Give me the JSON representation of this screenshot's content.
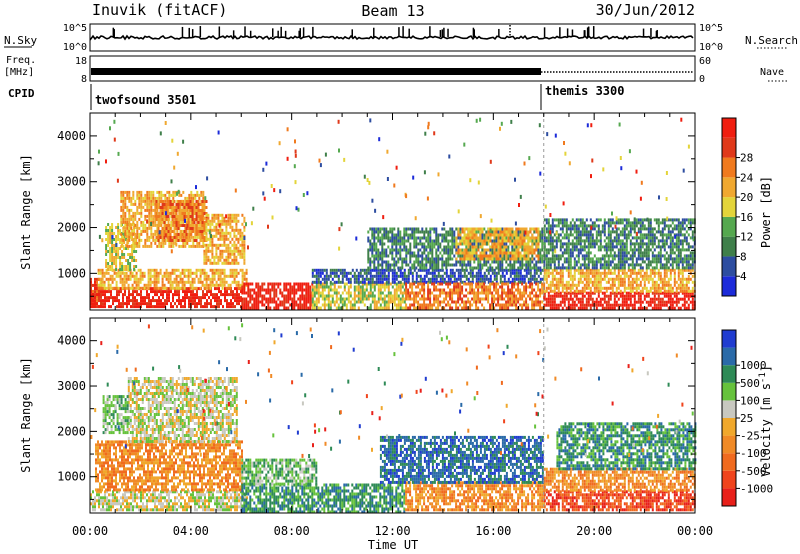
{
  "header": {
    "station": "Inuvik (fitACF)",
    "beam": "Beam 13",
    "date": "30/Jun/2012"
  },
  "top_panels": {
    "nsky_label": "N.Sky",
    "nsearch_label": "N.Search",
    "nsky_ticks": [
      "10^5",
      "10^0"
    ],
    "nsearch_ticks": [
      "10^5",
      "10^0"
    ],
    "freq_label_1": "Freq.",
    "freq_label_2": "[MHz]",
    "freq_ticks": [
      "18",
      "8"
    ],
    "nave_label": "Nave",
    "nave_ticks": [
      "60",
      "0"
    ],
    "cpid_label": "CPID",
    "cpid_segments": [
      {
        "name": "twofsound 3501",
        "start_hour": 0,
        "end_hour": 18
      },
      {
        "name": "themis 3300",
        "start_hour": 18,
        "end_hour": 24
      }
    ]
  },
  "chart_data": [
    {
      "type": "heatmap",
      "name": "power",
      "ylabel": "Slant Range [km]",
      "xlabel": "Time UT",
      "xlim": [
        0,
        24
      ],
      "ylim": [
        200,
        4500
      ],
      "y_ticks": [
        "1000",
        "2000",
        "3000",
        "4000"
      ],
      "colorbar_label": "Power [dB]",
      "colorbar_ticks": [
        "4",
        "8",
        "12",
        "16",
        "20",
        "24",
        "28"
      ],
      "colorbar_colors": [
        "#1c2bd9",
        "#2d4da0",
        "#3f7f4a",
        "#55a84f",
        "#e3d43a",
        "#f0a830",
        "#f07a1e",
        "#e0391a",
        "#f01e10"
      ],
      "regions": [
        {
          "x0": 0.0,
          "x1": 0.4,
          "r0": 250,
          "r1": 900,
          "level": 7
        },
        {
          "x0": 0.0,
          "x1": 6.0,
          "r0": 250,
          "r1": 700,
          "level": 8
        },
        {
          "x0": 0.3,
          "x1": 6.2,
          "r0": 700,
          "r1": 1100,
          "level": 5
        },
        {
          "x0": 0.6,
          "x1": 1.8,
          "r0": 1100,
          "r1": 2100,
          "level": 4
        },
        {
          "x0": 1.2,
          "x1": 4.5,
          "r0": 1600,
          "r1": 2800,
          "level": 5
        },
        {
          "x0": 2.6,
          "x1": 4.6,
          "r0": 1700,
          "r1": 2600,
          "level": 6
        },
        {
          "x0": 4.5,
          "x1": 6.1,
          "r0": 1200,
          "r1": 2300,
          "level": 5
        },
        {
          "x0": 6.0,
          "x1": 8.8,
          "r0": 250,
          "r1": 800,
          "level": 8
        },
        {
          "x0": 8.8,
          "x1": 12.5,
          "r0": 250,
          "r1": 800,
          "level": 4
        },
        {
          "x0": 8.8,
          "x1": 18.0,
          "r0": 800,
          "r1": 1100,
          "level": 1
        },
        {
          "x0": 12.5,
          "x1": 18.0,
          "r0": 250,
          "r1": 800,
          "level": 6
        },
        {
          "x0": 11.0,
          "x1": 18.0,
          "r0": 1100,
          "r1": 2000,
          "level": 2
        },
        {
          "x0": 14.5,
          "x1": 17.8,
          "r0": 1300,
          "r1": 2000,
          "level": 5
        },
        {
          "x0": 18.0,
          "x1": 24.0,
          "r0": 250,
          "r1": 600,
          "level": 8
        },
        {
          "x0": 18.0,
          "x1": 24.0,
          "r0": 600,
          "r1": 1100,
          "level": 5
        },
        {
          "x0": 18.0,
          "x1": 24.0,
          "r0": 1100,
          "r1": 2200,
          "level": 2
        }
      ]
    },
    {
      "type": "heatmap",
      "name": "velocity",
      "ylabel": "Slant Range [km]",
      "xlabel": "Time UT",
      "xlim": [
        0,
        24
      ],
      "ylim": [
        200,
        4500
      ],
      "y_ticks": [
        "1000",
        "2000",
        "3000",
        "4000"
      ],
      "x_ticks": [
        "00:00",
        "04:00",
        "08:00",
        "12:00",
        "16:00",
        "20:00",
        "00:00"
      ],
      "colorbar_label": "Velocity [m s",
      "colorbar_label_sup": "-1",
      "colorbar_label_end": "]",
      "colorbar_ticks": [
        "-1000",
        "-500",
        "-100",
        "-25",
        "25",
        "100",
        "500",
        "1000"
      ],
      "colorbar_colors": [
        "#e8201a",
        "#f0441c",
        "#f06a1e",
        "#f08a26",
        "#f0a82c",
        "#c8c8c0",
        "#66c23c",
        "#2e8a56",
        "#2a6aa8",
        "#203cd0"
      ],
      "regions": [
        {
          "x0": 0.0,
          "x1": 6.2,
          "r0": 250,
          "r1": 700,
          "level": 5
        },
        {
          "x0": 0.2,
          "x1": 6.0,
          "r0": 700,
          "r1": 1800,
          "level": 3
        },
        {
          "x0": 1.5,
          "x1": 5.8,
          "r0": 1800,
          "r1": 3200,
          "level": 5
        },
        {
          "x0": 0.5,
          "x1": 1.5,
          "r0": 2000,
          "r1": 2800,
          "level": 6
        },
        {
          "x0": 6.0,
          "x1": 12.5,
          "r0": 250,
          "r1": 850,
          "level": 7
        },
        {
          "x0": 6.0,
          "x1": 9.0,
          "r0": 850,
          "r1": 1400,
          "level": 6
        },
        {
          "x0": 12.5,
          "x1": 18.0,
          "r0": 250,
          "r1": 900,
          "level": 3
        },
        {
          "x0": 11.5,
          "x1": 18.0,
          "r0": 900,
          "r1": 1900,
          "level": 8
        },
        {
          "x0": 18.0,
          "x1": 24.0,
          "r0": 250,
          "r1": 700,
          "level": 1
        },
        {
          "x0": 18.0,
          "x1": 24.0,
          "r0": 700,
          "r1": 1200,
          "level": 3
        },
        {
          "x0": 18.5,
          "x1": 24.0,
          "r0": 1200,
          "r1": 2200,
          "level": 7
        }
      ]
    }
  ]
}
